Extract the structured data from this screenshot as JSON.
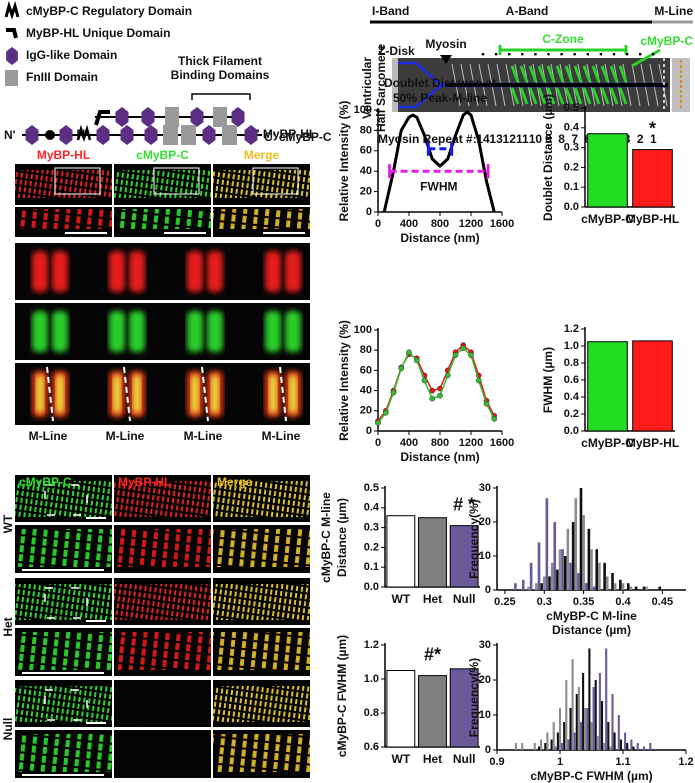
{
  "domain_key": {
    "items": [
      "cMyBP-C Regulatory Domain",
      "MyBP-HL Unique Domain",
      "IgG-like Domain",
      "FnIII Domain"
    ],
    "binding_label": [
      "Thick Filament",
      "Binding Domains"
    ],
    "proteins": [
      {
        "n": "N'",
        "c": "C' MyBP-HL"
      },
      {
        "n": "N'",
        "c": "C' cMyBP-C"
      }
    ]
  },
  "sarcomere": {
    "bands": [
      "I-Band",
      "A-Band",
      "M-Line"
    ],
    "side_label": [
      "Ventricular",
      "Half Sarcomere"
    ],
    "z_disk": "Z-Disk",
    "myosin": "Myosin",
    "c_zone": "C-Zone",
    "cmybpc": "cMyBP-C",
    "repeat_label": "Myosin Repeat #:",
    "repeats": [
      "14",
      "13",
      "12",
      "11",
      "10",
      "9",
      "8",
      "7",
      "6",
      "5",
      "4",
      "3",
      "2",
      "1"
    ]
  },
  "images_top": {
    "columns": [
      "MyBP-HL",
      "cMyBP-C",
      "Merge"
    ],
    "m_line": [
      "M-Line",
      "M-Line",
      "M-Line",
      "M-Line"
    ]
  },
  "images_bottom": {
    "columns": [
      "cMyBP-C",
      "MyBP-HL",
      "Merge"
    ],
    "rows": [
      "WT",
      "Het",
      "Null"
    ]
  },
  "chart_data": [
    {
      "type": "line",
      "title": [
        "Doublet Distance at",
        "50% Peak-M-line"
      ],
      "title_color": "#1a1ae6",
      "ylabel": "Relative Intensity (%)",
      "xlabel": "Distance (nm)",
      "x": [
        80,
        200,
        300,
        400,
        450,
        500,
        600,
        700,
        800,
        900,
        1000,
        1100,
        1150,
        1200,
        1300,
        1400,
        1500
      ],
      "series": [
        {
          "color": "#000000",
          "values": [
            0,
            40,
            80,
            93,
            95,
            93,
            75,
            52,
            45,
            52,
            75,
            95,
            98,
            95,
            70,
            30,
            0
          ]
        }
      ],
      "xlim": [
        0,
        1600
      ],
      "ylim": [
        0,
        100
      ],
      "xticks": [
        0,
        400,
        800,
        1200,
        1600
      ],
      "yticks": [
        0,
        20,
        40,
        60,
        80,
        100
      ],
      "annotations": [
        {
          "text": "FWHM",
          "color": "#e020e0",
          "x": [
            150,
            1420
          ],
          "y": 40
        },
        {
          "color": "#1a1ae6",
          "x": [
            650,
            950
          ],
          "y": 62
        }
      ]
    },
    {
      "type": "line",
      "markers": true,
      "ylabel": "Relative Intensity (%)",
      "xlabel": "Distance (nm)",
      "x": [
        0,
        100,
        200,
        300,
        400,
        500,
        600,
        700,
        800,
        900,
        1000,
        1100,
        1200,
        1300,
        1400,
        1500
      ],
      "series": [
        {
          "color": "#e8141b",
          "values": [
            10,
            20,
            40,
            63,
            76,
            72,
            55,
            40,
            42,
            60,
            78,
            85,
            78,
            55,
            30,
            15
          ]
        },
        {
          "color": "#2fbf2f",
          "values": [
            8,
            18,
            38,
            62,
            78,
            70,
            50,
            32,
            35,
            55,
            75,
            82,
            75,
            50,
            27,
            12
          ]
        }
      ],
      "xlim": [
        0,
        1600
      ],
      "ylim": [
        0,
        100
      ],
      "xticks": [
        0,
        400,
        800,
        1200,
        1600
      ],
      "yticks": [
        0,
        20,
        40,
        60,
        80,
        100
      ]
    },
    {
      "type": "bar",
      "ylabel": "Doublet Distance (µm)",
      "categories": [
        "cMyBP-C",
        "MyBP-HL"
      ],
      "values": [
        0.37,
        0.29
      ],
      "colors": [
        "#22dd22",
        "#ff1a1a"
      ],
      "ylim": [
        0,
        0.5
      ],
      "yticks": [
        {
          "value": 0,
          "label": "0.0"
        },
        0.1,
        0.2,
        0.3,
        0.4,
        0.5
      ],
      "annotations": [
        {
          "text": "*",
          "category": "MyBP-HL"
        }
      ]
    },
    {
      "type": "bar",
      "ylabel": "FWHM (µm)",
      "categories": [
        "cMyBP-C",
        "MyBP-HL"
      ],
      "values": [
        1.05,
        1.06
      ],
      "colors": [
        "#22dd22",
        "#ff1a1a"
      ],
      "ylim": [
        0,
        1.2
      ],
      "yticks": [
        {
          "value": 0,
          "label": "0.0"
        },
        0.2,
        0.4,
        0.6,
        0.8,
        {
          "value": 1,
          "label": "1.0"
        },
        1.2
      ]
    },
    {
      "type": "bar",
      "ylabel": [
        "cMyBP-C M-line",
        "Distance (µm)"
      ],
      "categories": [
        "WT",
        "Het",
        "Null"
      ],
      "values": [
        0.36,
        0.35,
        0.31
      ],
      "colors": [
        "#ffffff",
        "#7f7f7f",
        "#6a5a9c"
      ],
      "ylim": [
        0,
        0.5
      ],
      "yticks": [
        {
          "value": 0,
          "label": "0.0"
        },
        0.1,
        0.2,
        0.3,
        0.4,
        0.5
      ],
      "annotations": [
        {
          "text": "# *",
          "category": "Null"
        }
      ]
    },
    {
      "type": "histogram",
      "ylabel": "Frequency(%)",
      "xlabel": [
        "cMyBP-C M-line",
        "Distance (µm)"
      ],
      "bins": [
        0.255,
        0.265,
        0.275,
        0.285,
        0.295,
        0.305,
        0.315,
        0.325,
        0.335,
        0.345,
        0.355,
        0.365,
        0.375,
        0.385,
        0.395,
        0.405,
        0.415,
        0.425,
        0.435,
        0.445,
        0.455,
        0.465
      ],
      "series": [
        {
          "color": "#111111",
          "values": [
            0,
            0,
            0,
            0,
            2,
            4,
            6,
            10,
            20,
            30,
            18,
            12,
            8,
            5,
            3,
            2,
            1,
            1,
            0,
            1,
            0
          ]
        },
        {
          "color": "#8c8c8c",
          "values": [
            0,
            0,
            1,
            2,
            4,
            8,
            12,
            18,
            27,
            22,
            12,
            8,
            4,
            2,
            2,
            1,
            0,
            1,
            0,
            0,
            0
          ]
        },
        {
          "color": "#6a5a9c",
          "values": [
            2,
            3,
            8,
            14,
            27,
            20,
            12,
            8,
            5,
            2,
            1,
            0,
            0,
            0,
            0,
            0,
            0,
            0,
            0,
            0,
            0
          ]
        }
      ],
      "xlim": [
        0.24,
        0.48
      ],
      "ylim": [
        0,
        30
      ],
      "xticks": [
        0.25,
        0.3,
        0.35,
        0.4,
        0.45
      ],
      "yticks": [
        0,
        10,
        20,
        30
      ]
    },
    {
      "type": "bar",
      "ylabel": "cMyBP-C FWHM (µm)",
      "categories": [
        "WT",
        "Het",
        "Null"
      ],
      "values": [
        1.05,
        1.02,
        1.06
      ],
      "colors": [
        "#ffffff",
        "#7f7f7f",
        "#6a5a9c"
      ],
      "ylim": [
        0.6,
        1.2
      ],
      "yticks": [
        0.6,
        0.8,
        {
          "value": 1,
          "label": "1.0"
        },
        1.2
      ],
      "annotations": [
        {
          "text": "#*",
          "category": "Het"
        }
      ]
    },
    {
      "type": "histogram",
      "ylabel": "Frequency(%)",
      "xlabel": "cMyBP-C FWHM (µm)",
      "bins": [
        0.925,
        0.935,
        0.945,
        0.955,
        0.965,
        0.975,
        0.985,
        0.995,
        1.005,
        1.015,
        1.025,
        1.035,
        1.045,
        1.055,
        1.065,
        1.075,
        1.085,
        1.095,
        1.105,
        1.115,
        1.125,
        1.135,
        1.145
      ],
      "series": [
        {
          "color": "#111111",
          "values": [
            0,
            0,
            0,
            0,
            1,
            2,
            3,
            5,
            8,
            12,
            16,
            22,
            29,
            20,
            14,
            8,
            5,
            3,
            2,
            1,
            0,
            0
          ]
        },
        {
          "color": "#8c8c8c",
          "values": [
            2,
            2,
            0,
            2,
            3,
            5,
            8,
            12,
            20,
            26,
            18,
            12,
            8,
            4,
            2,
            1,
            0,
            0,
            0,
            0,
            0,
            0
          ]
        },
        {
          "color": "#6a5a9c",
          "values": [
            0,
            0,
            0,
            0,
            0,
            0,
            1,
            2,
            3,
            5,
            8,
            12,
            18,
            22,
            29,
            16,
            10,
            5,
            3,
            2,
            1,
            2
          ]
        }
      ],
      "xlim": [
        0.9,
        1.2
      ],
      "ylim": [
        0,
        30
      ],
      "xticks": [
        0.9,
        1,
        1.1,
        1.2
      ],
      "yticks": [
        0,
        10,
        20,
        30
      ]
    }
  ]
}
